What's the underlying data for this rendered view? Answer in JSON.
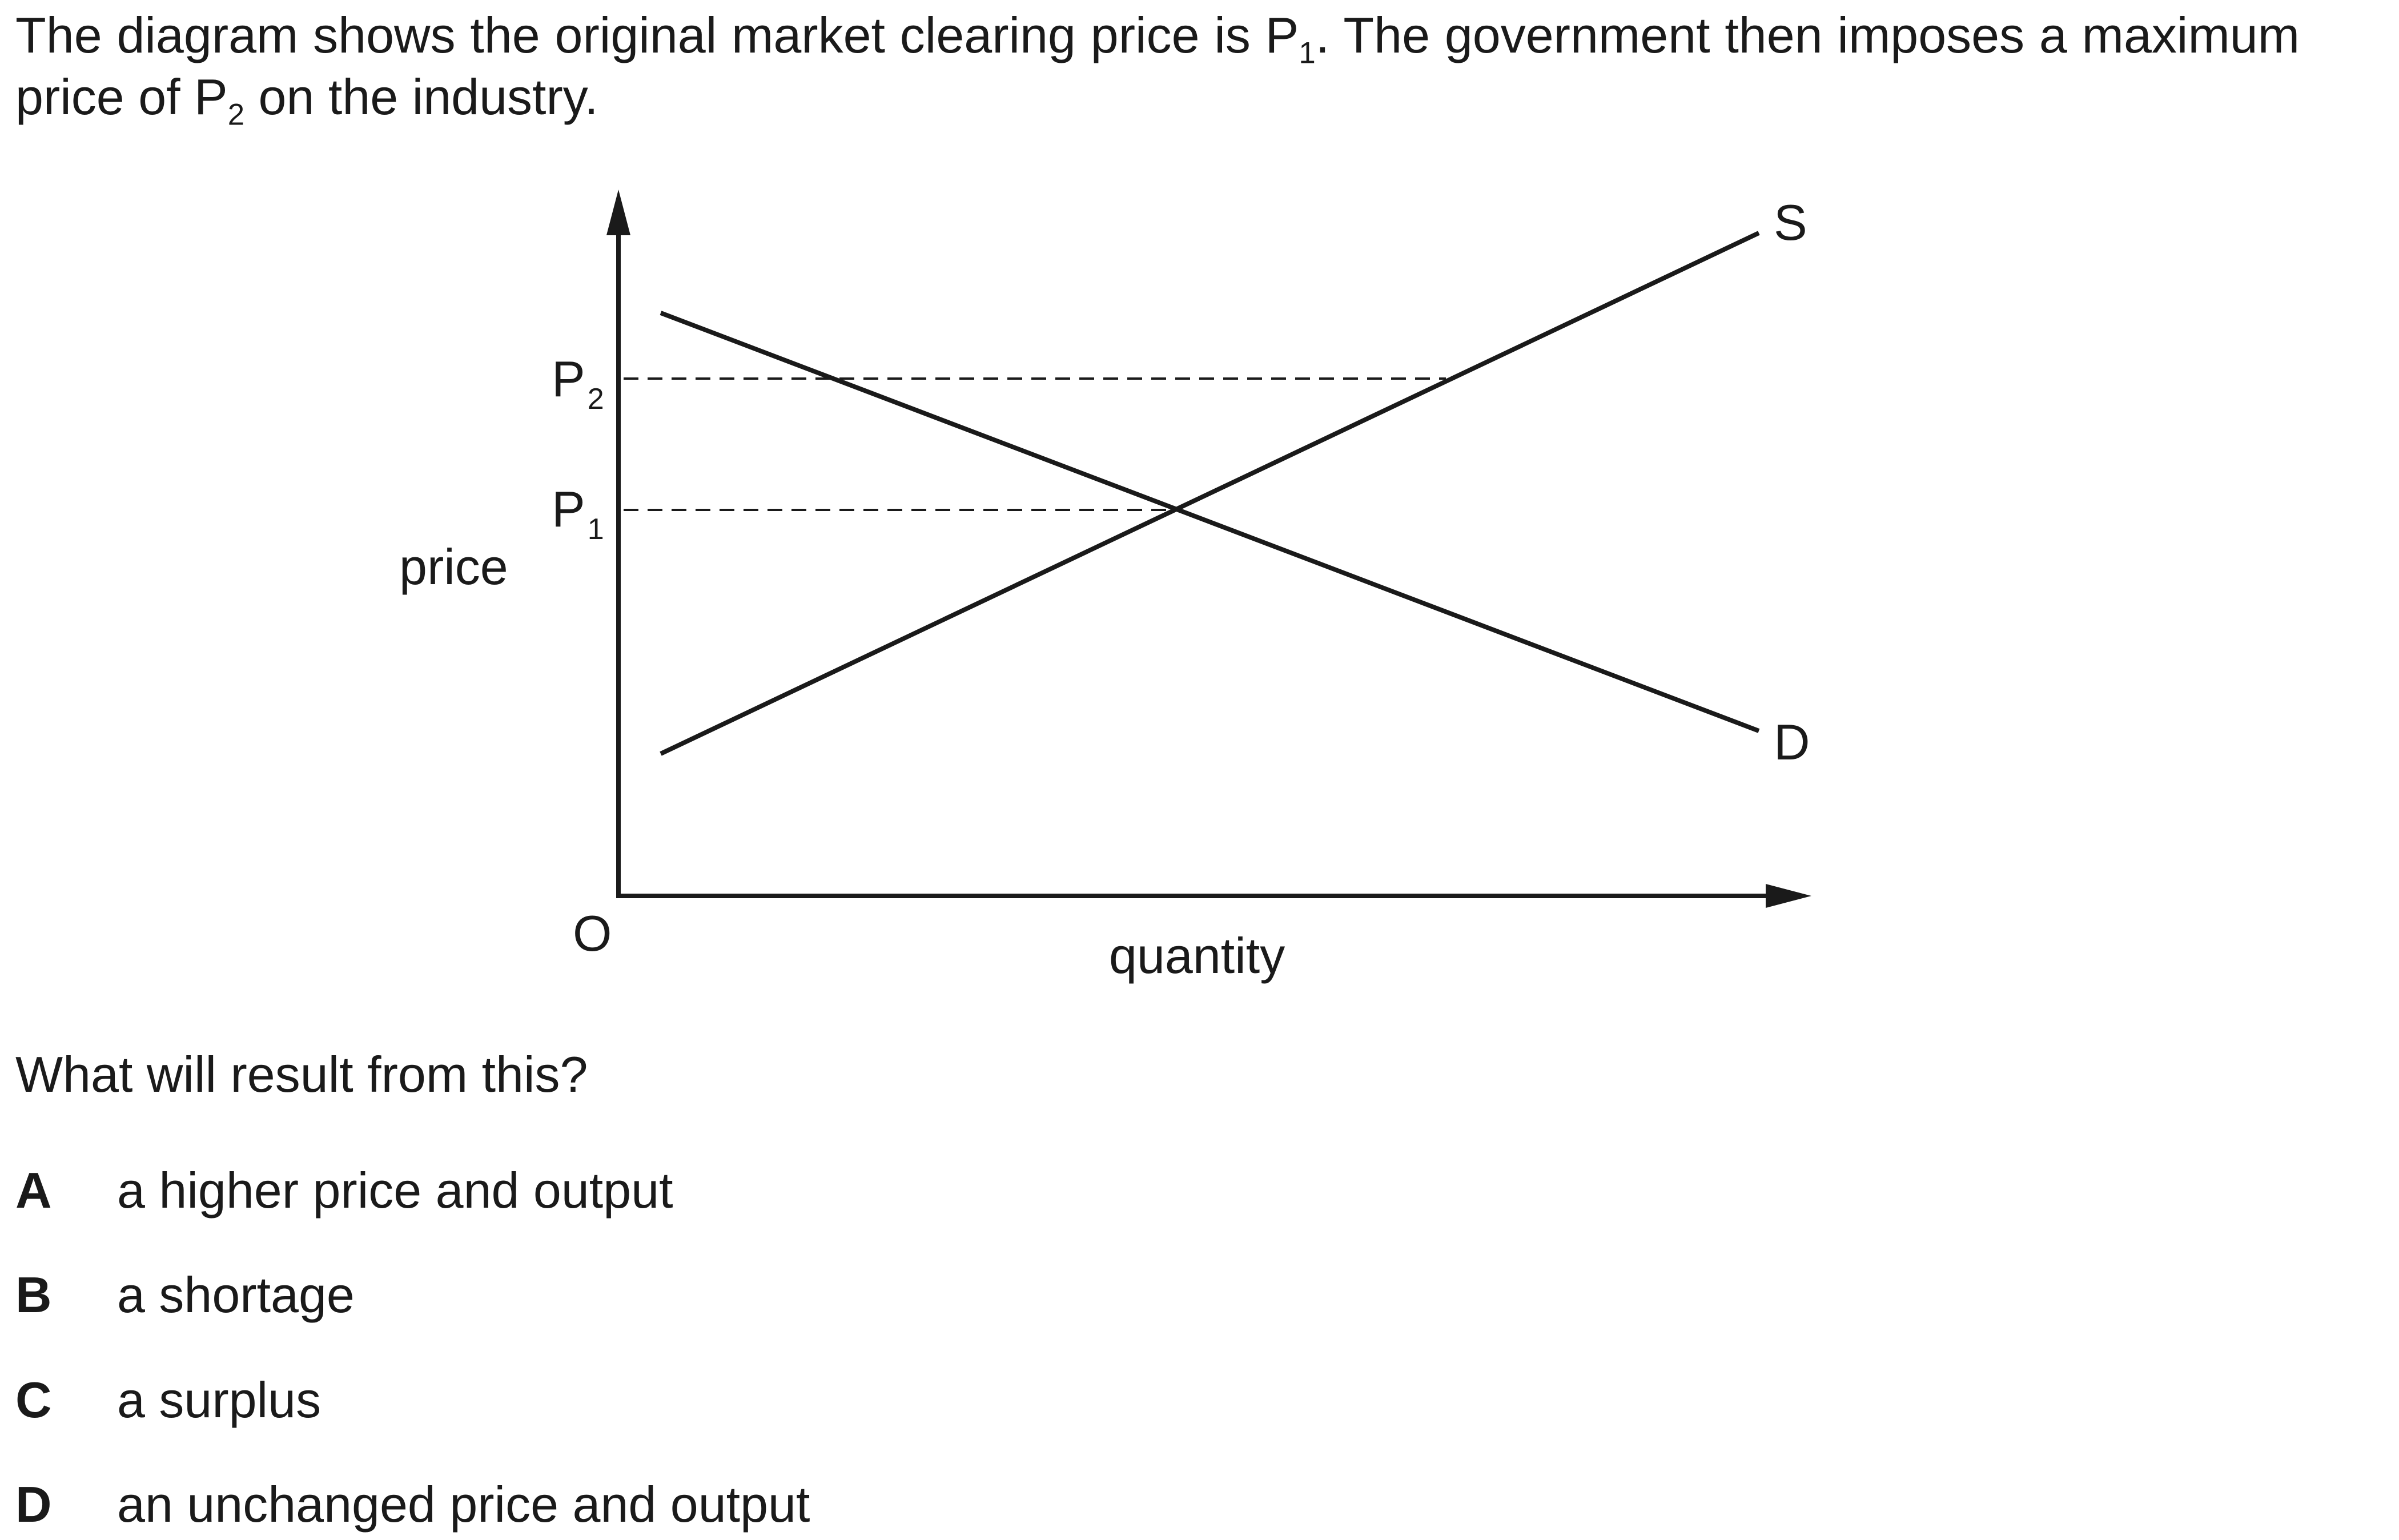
{
  "intro": {
    "part1": "The diagram shows the original market clearing price is P",
    "sub1": "1",
    "part2": ". The government then imposes a maximum price of P",
    "sub2": "2",
    "part3": " on the industry."
  },
  "diagram": {
    "y_axis_label": "price",
    "x_axis_label": "quantity",
    "origin_label": "O",
    "p2_main": "P",
    "p2_sub": "2",
    "p1_main": "P",
    "p1_sub": "1",
    "supply_label": "S",
    "demand_label": "D"
  },
  "question": "What will result from this?",
  "options": [
    {
      "letter": "A",
      "text": "a higher price and output"
    },
    {
      "letter": "B",
      "text": "a shortage"
    },
    {
      "letter": "C",
      "text": "a surplus"
    },
    {
      "letter": "D",
      "text": "an unchanged price and output"
    }
  ],
  "colors": {
    "ink": "#1a1a1a",
    "background": "#ffffff"
  }
}
